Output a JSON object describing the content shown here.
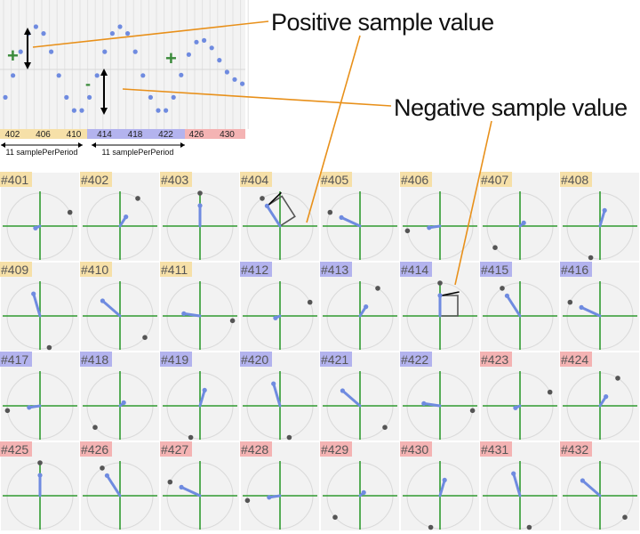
{
  "callouts": {
    "positive": "Positive sample value",
    "negative": "Negative sample value"
  },
  "signs": {
    "plus": "+",
    "minus": "-"
  },
  "wave": {
    "axis_labels": [
      "402",
      "406",
      "410",
      "414",
      "418",
      "422",
      "426",
      "430"
    ],
    "period_label": "11 samplePerPeriod"
  },
  "group_colors": {
    "a": "#f6e0a8",
    "b": "#b3b3ee",
    "c": "#f4b3b3"
  },
  "colors": {
    "dot": "#6f8be0",
    "axis": "#2f9a2f",
    "callout_line": "#e8901a",
    "bar": "#6f8be0",
    "marker": "#555555",
    "grid_bg": "#f2f2f2"
  },
  "cells": [
    {
      "label": "#401",
      "group": "a"
    },
    {
      "label": "#402",
      "group": "a"
    },
    {
      "label": "#403",
      "group": "a"
    },
    {
      "label": "#404",
      "group": "a"
    },
    {
      "label": "#405",
      "group": "a"
    },
    {
      "label": "#406",
      "group": "a"
    },
    {
      "label": "#407",
      "group": "a"
    },
    {
      "label": "#408",
      "group": "a"
    },
    {
      "label": "#409",
      "group": "a"
    },
    {
      "label": "#410",
      "group": "a"
    },
    {
      "label": "#411",
      "group": "a"
    },
    {
      "label": "#412",
      "group": "b"
    },
    {
      "label": "#413",
      "group": "b"
    },
    {
      "label": "#414",
      "group": "b"
    },
    {
      "label": "#415",
      "group": "b"
    },
    {
      "label": "#416",
      "group": "b"
    },
    {
      "label": "#417",
      "group": "b"
    },
    {
      "label": "#418",
      "group": "b"
    },
    {
      "label": "#419",
      "group": "b"
    },
    {
      "label": "#420",
      "group": "b"
    },
    {
      "label": "#421",
      "group": "b"
    },
    {
      "label": "#422",
      "group": "b"
    },
    {
      "label": "#423",
      "group": "c"
    },
    {
      "label": "#424",
      "group": "c"
    },
    {
      "label": "#425",
      "group": "c"
    },
    {
      "label": "#426",
      "group": "c"
    },
    {
      "label": "#427",
      "group": "c"
    },
    {
      "label": "#428",
      "group": "c"
    },
    {
      "label": "#429",
      "group": "c"
    },
    {
      "label": "#430",
      "group": "c"
    },
    {
      "label": "#431",
      "group": "c"
    },
    {
      "label": "#432",
      "group": "c"
    }
  ]
}
